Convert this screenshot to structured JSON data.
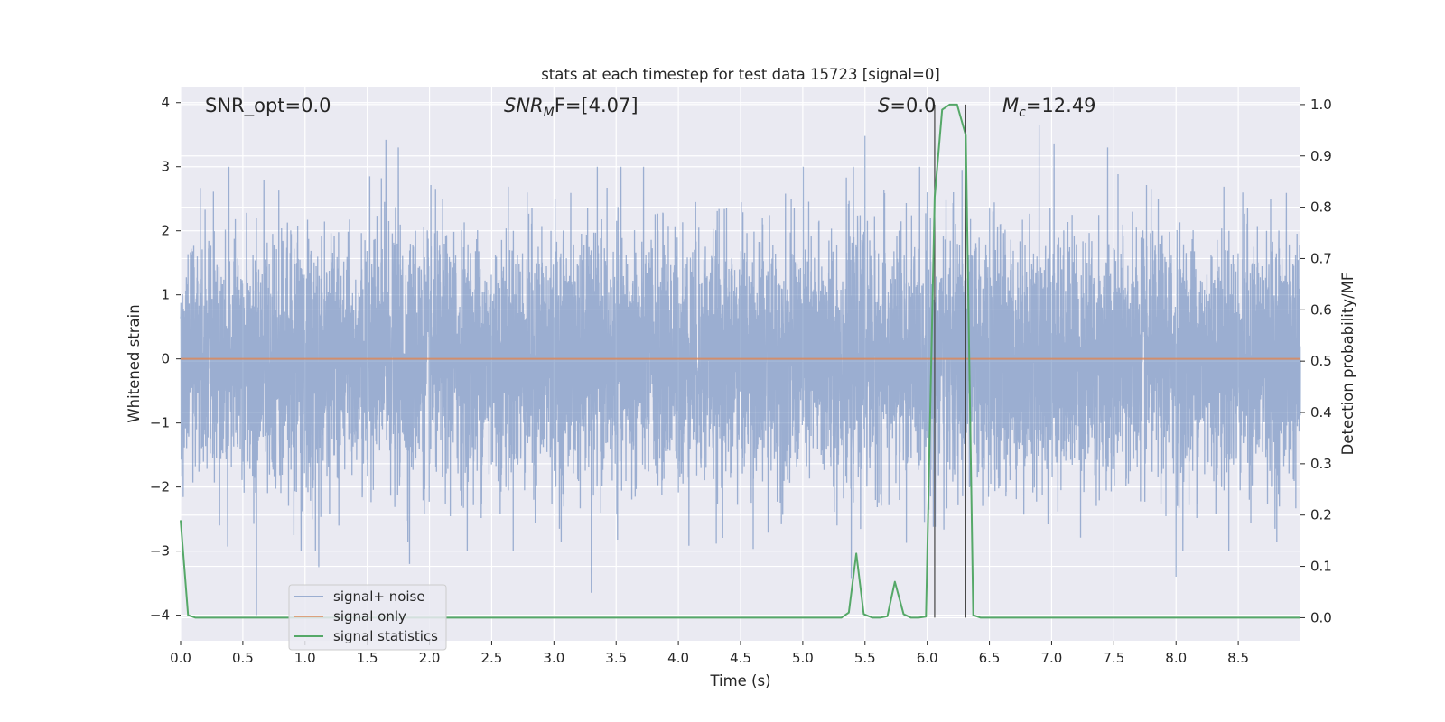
{
  "chart_data": {
    "type": "line",
    "title": "stats at each timestep for test data 15723 [signal=0]",
    "xlabel": "Time (s)",
    "ylabel": "Whitened strain",
    "y2label": "Detection probability/MF",
    "xlim": [
      0.0,
      9.0
    ],
    "ylim": [
      -4.4,
      4.25
    ],
    "y2lim": [
      -0.045,
      1.035
    ],
    "xticks": [
      "0.0",
      "0.5",
      "1.0",
      "1.5",
      "2.0",
      "2.5",
      "3.0",
      "3.5",
      "4.0",
      "4.5",
      "5.0",
      "5.5",
      "6.0",
      "6.5",
      "7.0",
      "7.5",
      "8.0",
      "8.5"
    ],
    "yticks": [
      "4",
      "3",
      "2",
      "1",
      "0",
      "−1",
      "−2",
      "−3",
      "−4"
    ],
    "y2ticks": [
      "1.0",
      "0.9",
      "0.8",
      "0.7",
      "0.6",
      "0.5",
      "0.4",
      "0.3",
      "0.2",
      "0.1",
      "0.0"
    ],
    "grid": true,
    "legend_position": "lower-left",
    "annotations": [
      {
        "id": "snr-opt",
        "text": "SNR_opt=0.0"
      },
      {
        "id": "snr-mf",
        "text": "SNRₘF=[4.07]",
        "parts": [
          "SNR",
          "M",
          "F=[4.07]"
        ]
      },
      {
        "id": "s",
        "text": "S=0.0",
        "parts": [
          "S",
          "=0.0"
        ]
      },
      {
        "id": "mc",
        "text": "Mc=12.49",
        "parts": [
          "M",
          "c",
          "=12.49"
        ]
      }
    ],
    "vlines": [
      6.06,
      6.31
    ],
    "series": [
      {
        "name": "signal+ noise",
        "color": "#4c72b0",
        "opacity": 0.5,
        "description": "whitened noise, ~1 sigma, 8192 samples over 9 s",
        "sample_rate": 910,
        "amplitude_sigma": 1.0
      },
      {
        "name": "signal only",
        "color": "#dd8452",
        "x": [
          0.0,
          9.0
        ],
        "y": [
          0.0,
          0.0
        ]
      },
      {
        "name": "signal statistics",
        "color": "#55a868",
        "axis": "right",
        "x": [
          0.0,
          0.06,
          0.12,
          0.18,
          5.31,
          5.37,
          5.43,
          5.49,
          5.56,
          5.62,
          5.68,
          5.74,
          5.81,
          5.87,
          5.93,
          5.99,
          6.06,
          6.12,
          6.18,
          6.24,
          6.31,
          6.37,
          6.43,
          9.0
        ],
        "y": [
          0.19,
          0.005,
          0.0,
          0.0,
          0.0,
          0.01,
          0.125,
          0.007,
          0.0,
          0.0,
          0.003,
          0.07,
          0.007,
          0.0,
          0.0,
          0.002,
          0.82,
          0.99,
          1.0,
          1.0,
          0.94,
          0.005,
          0.0,
          0.0
        ]
      }
    ],
    "peaks": [
      {
        "x": 0.61,
        "y": -4.0
      },
      {
        "x": 1.11,
        "y": -3.25
      },
      {
        "x": 1.65,
        "y": 3.42
      },
      {
        "x": 1.75,
        "y": 3.3
      },
      {
        "x": 1.84,
        "y": -3.2
      },
      {
        "x": 3.3,
        "y": -3.65
      },
      {
        "x": 5.39,
        "y": -3.42
      },
      {
        "x": 5.5,
        "y": 3.48
      },
      {
        "x": 6.9,
        "y": 3.65
      },
      {
        "x": 7.02,
        "y": 3.35
      },
      {
        "x": 7.45,
        "y": 3.3
      },
      {
        "x": 8.0,
        "y": -3.4
      },
      {
        "x": 6.0,
        "y": 2.6
      },
      {
        "x": 6.28,
        "y": 2.95
      },
      {
        "x": 1.52,
        "y": 2.85
      }
    ]
  }
}
